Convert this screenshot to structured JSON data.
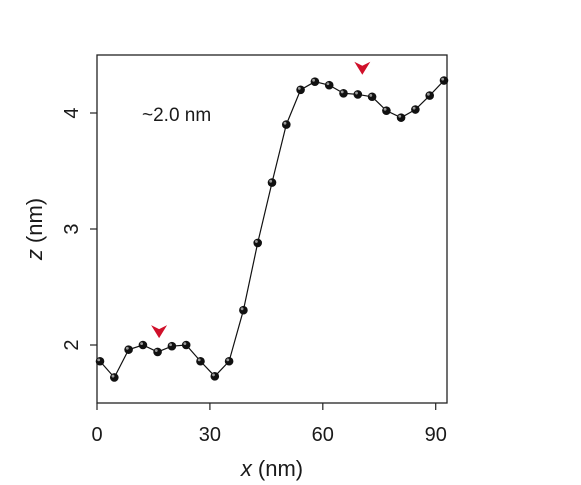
{
  "chart_data": {
    "type": "scatter",
    "connected": true,
    "xlabel_var": "x",
    "xlabel_unit": "(nm)",
    "ylabel_var": "z",
    "ylabel_unit": "(nm)",
    "xlim": [
      0,
      93
    ],
    "ylim": [
      1.5,
      4.5
    ],
    "xticks": [
      0,
      30,
      60,
      90
    ],
    "yticks": [
      2,
      3,
      4
    ],
    "annotation": "~2.0 nm",
    "marker_color": "#111111",
    "line_color": "#111111",
    "arrow_color": "#d0102a",
    "arrows": [
      {
        "x": 16.5,
        "y": 2.12
      },
      {
        "x": 70.5,
        "y": 4.39
      }
    ],
    "x": [
      0.8,
      4.6,
      8.4,
      12.2,
      16.1,
      19.9,
      23.7,
      27.5,
      31.3,
      35.1,
      38.9,
      42.7,
      46.5,
      50.3,
      54.1,
      57.9,
      61.7,
      65.5,
      69.3,
      73.1,
      76.9,
      80.8,
      84.6,
      88.4,
      92.2
    ],
    "y": [
      1.86,
      1.72,
      1.96,
      2.0,
      1.94,
      1.99,
      2.0,
      1.86,
      1.73,
      1.86,
      2.3,
      2.88,
      3.4,
      3.9,
      4.2,
      4.27,
      4.24,
      4.17,
      4.16,
      4.14,
      4.02,
      3.96,
      4.03,
      4.15,
      4.28
    ]
  }
}
